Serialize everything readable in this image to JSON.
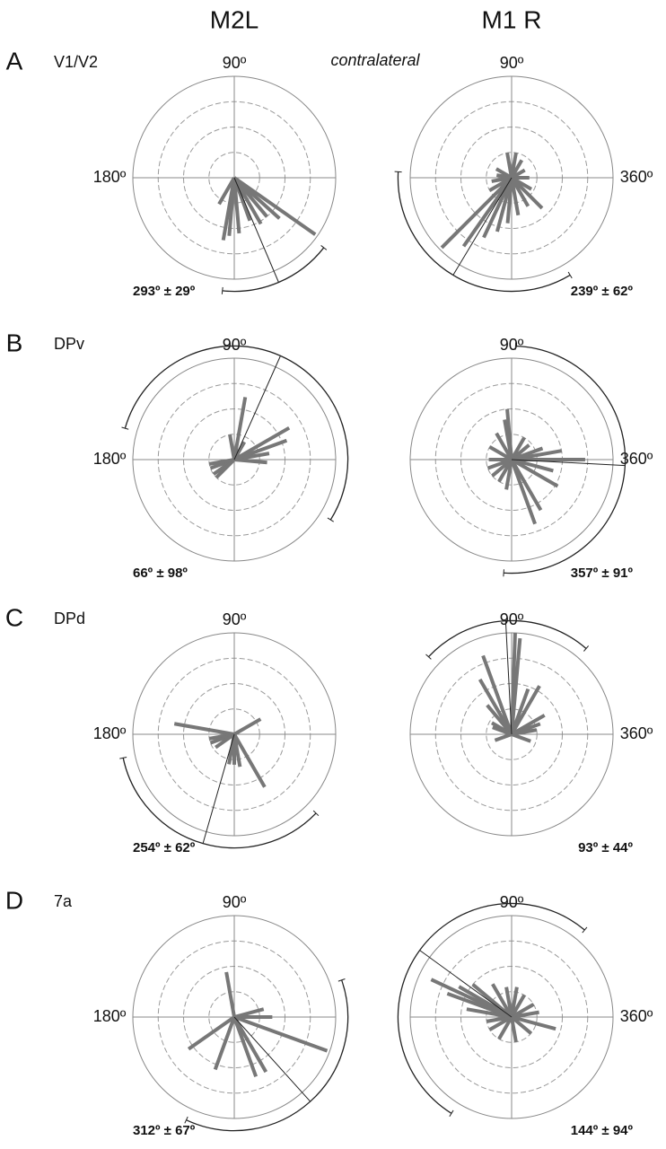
{
  "header": {
    "columns": [
      "M2L",
      "M1 R"
    ],
    "note": "contralateral"
  },
  "panels": [
    {
      "letter": "A",
      "region": "V1/V2"
    },
    {
      "letter": "B",
      "region": "DPv"
    },
    {
      "letter": "C",
      "region": "DPd"
    },
    {
      "letter": "D",
      "region": "7a"
    }
  ],
  "chart_data": [
    {
      "type": "polar",
      "rlim": [
        0,
        4
      ],
      "rticks": [
        1,
        2,
        3
      ],
      "angle_labels": [
        {
          "value": 90,
          "label": "90º"
        },
        {
          "value": 180,
          "label": "180º"
        }
      ],
      "angles": [
        325,
        260,
        265,
        275,
        300,
        310,
        318,
        290,
        240
      ],
      "values": [
        3.9,
        2.5,
        2.3,
        2.2,
        2.1,
        2.0,
        2.4,
        1.8,
        1.2
      ],
      "mean": 293,
      "sd": 29,
      "annotation": "293º ± 29º",
      "color": "#777777"
    },
    {
      "type": "polar",
      "rlim": [
        0,
        4
      ],
      "rticks": [
        1,
        2,
        3
      ],
      "angle_labels": [
        {
          "value": 90,
          "label": "90º"
        },
        {
          "value": 360,
          "label": "360º"
        }
      ],
      "angles": [
        225,
        235,
        245,
        255,
        265,
        280,
        300,
        210,
        190,
        170,
        150,
        100,
        80,
        60,
        30,
        0,
        330,
        315
      ],
      "values": [
        3.9,
        3.3,
        2.6,
        2.2,
        1.8,
        1.5,
        1.3,
        1.0,
        0.8,
        0.6,
        0.7,
        1.0,
        1.0,
        0.8,
        0.6,
        0.7,
        0.9,
        1.7
      ],
      "mean": 239,
      "sd": 62,
      "annotation": "239º ± 62º",
      "color": "#777777"
    },
    {
      "type": "polar",
      "rlim": [
        0,
        4
      ],
      "rticks": [
        1,
        2,
        3
      ],
      "angle_labels": [
        {
          "value": 90,
          "label": "90º"
        },
        {
          "value": 180,
          "label": "180º"
        }
      ],
      "angles": [
        80,
        30,
        20,
        10,
        355,
        200,
        215,
        225,
        190,
        100,
        60
      ],
      "values": [
        2.5,
        2.5,
        2.2,
        1.4,
        1.3,
        1.0,
        1.0,
        1.0,
        1.0,
        1.0,
        0.8
      ],
      "mean": 66,
      "sd": 98,
      "annotation": "66º ± 98º",
      "color": "#777777"
    },
    {
      "type": "polar",
      "rlim": [
        0,
        4
      ],
      "rticks": [
        1,
        2,
        3
      ],
      "angle_labels": [
        {
          "value": 90,
          "label": "90º"
        },
        {
          "value": 360,
          "label": "360º"
        }
      ],
      "angles": [
        0,
        10,
        345,
        330,
        290,
        300,
        95,
        100,
        120,
        150,
        180,
        200,
        220,
        240,
        260,
        40,
        60,
        20
      ],
      "values": [
        2.9,
        2.0,
        1.7,
        2.1,
        2.7,
        2.3,
        2.0,
        1.6,
        1.2,
        1.0,
        0.9,
        1.0,
        1.0,
        1.0,
        1.2,
        0.9,
        1.0,
        1.3
      ],
      "mean": 357,
      "sd": 91,
      "annotation": "357º ± 91º",
      "color": "#777777"
    },
    {
      "type": "polar",
      "rlim": [
        0,
        4
      ],
      "rticks": [
        1,
        2,
        3
      ],
      "angle_labels": [
        {
          "value": 90,
          "label": "90º"
        },
        {
          "value": 180,
          "label": "180º"
        }
      ],
      "angles": [
        170,
        190,
        200,
        215,
        260,
        270,
        280,
        300,
        30
      ],
      "values": [
        2.4,
        1.0,
        1.0,
        0.9,
        1.2,
        1.2,
        1.3,
        2.4,
        1.2
      ],
      "mean": 254,
      "sd": 62,
      "annotation": "254º ± 62º",
      "color": "#777777"
    },
    {
      "type": "polar",
      "rlim": [
        0,
        4
      ],
      "rticks": [
        1,
        2,
        3
      ],
      "angle_labels": [
        {
          "value": 90,
          "label": "90º"
        },
        {
          "value": 360,
          "label": "360º"
        }
      ],
      "angles": [
        88,
        85,
        110,
        120,
        60,
        70,
        130,
        30,
        20,
        150,
        160,
        200,
        340,
        10
      ],
      "values": [
        4.0,
        3.8,
        3.3,
        2.5,
        2.2,
        1.9,
        1.5,
        1.5,
        1.2,
        0.9,
        0.8,
        0.7,
        0.8,
        1.0
      ],
      "mean": 93,
      "sd": 44,
      "annotation": "93º ± 44º",
      "color": "#777777"
    },
    {
      "type": "polar",
      "rlim": [
        0,
        4
      ],
      "rticks": [
        1,
        2,
        3
      ],
      "angle_labels": [
        {
          "value": 90,
          "label": "90º"
        },
        {
          "value": 180,
          "label": "180º"
        }
      ],
      "angles": [
        100,
        15,
        0,
        340,
        300,
        250,
        215,
        290
      ],
      "values": [
        1.8,
        1.2,
        1.5,
        3.9,
        2.5,
        2.2,
        2.2,
        2.5
      ],
      "mean": 312,
      "sd": 67,
      "annotation": "312º ± 67º",
      "color": "#777777"
    },
    {
      "type": "polar",
      "rlim": [
        0,
        4
      ],
      "rticks": [
        1,
        2,
        3
      ],
      "angle_labels": [
        {
          "value": 90,
          "label": "90º"
        },
        {
          "value": 360,
          "label": "360º"
        }
      ],
      "angles": [
        155,
        160,
        150,
        140,
        120,
        100,
        80,
        60,
        30,
        10,
        345,
        320,
        280,
        240,
        210,
        190,
        170
      ],
      "values": [
        3.5,
        2.7,
        2.4,
        2.0,
        1.5,
        1.2,
        1.2,
        1.0,
        1.0,
        1.1,
        1.8,
        1.0,
        1.0,
        1.0,
        1.0,
        1.0,
        1.8
      ],
      "mean": 144,
      "sd": 94,
      "annotation": "144º ± 94º",
      "color": "#777777"
    }
  ]
}
